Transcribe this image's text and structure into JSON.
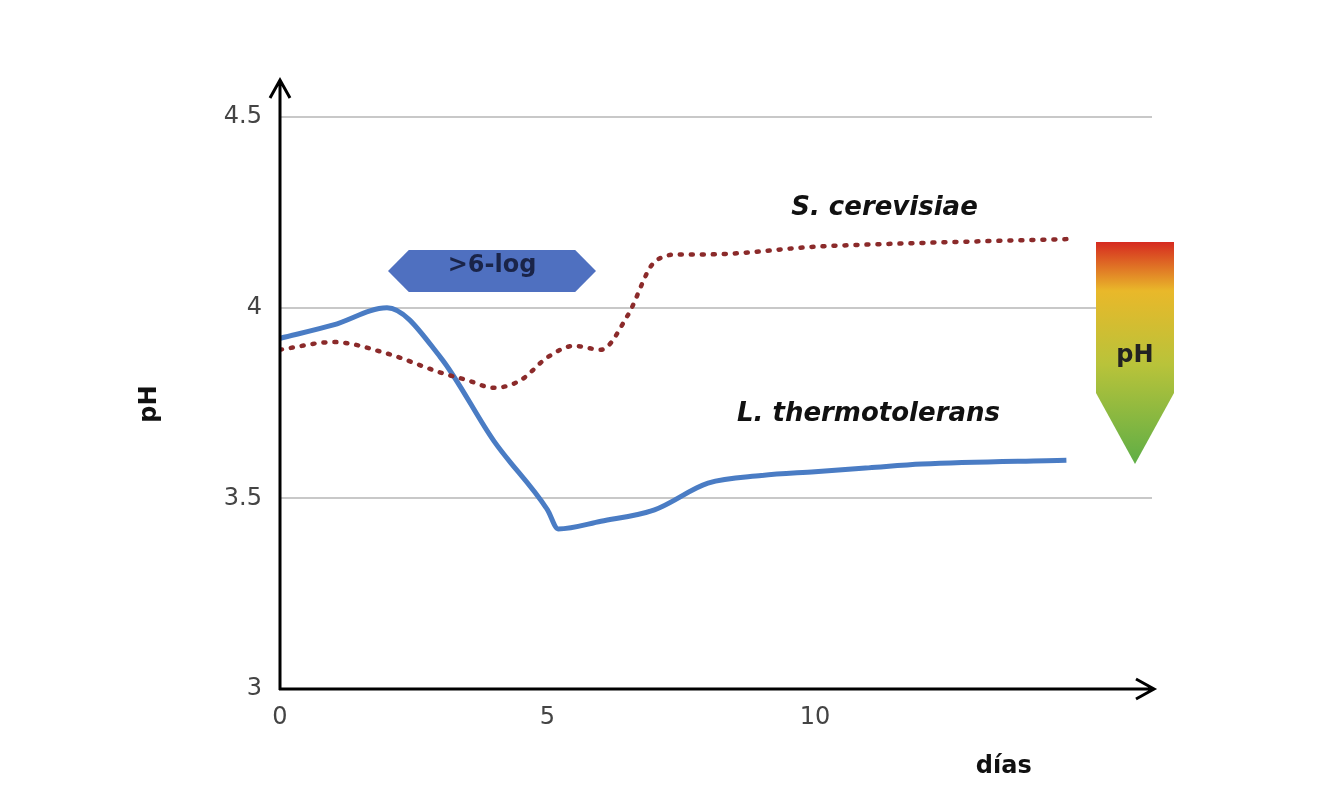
{
  "chart_data": {
    "type": "line",
    "xlabel": "días",
    "ylabel": "pH",
    "xlim": [
      0,
      16.3
    ],
    "ylim": [
      3,
      4.6
    ],
    "xticks": [
      0,
      5,
      10
    ],
    "yticks": [
      3,
      3.5,
      4,
      4.5
    ],
    "grid": "y",
    "legend": false,
    "annotations": [
      ">6-log",
      "pH"
    ],
    "series": [
      {
        "name": "S. cerevisiae",
        "color": "#8b2a2a",
        "line_style": "dotted",
        "x": [
          0,
          1,
          2,
          3,
          3.5,
          4,
          4.5,
          5,
          5.5,
          6,
          6.5,
          7,
          7.5,
          8,
          10,
          12,
          14.7
        ],
        "values": [
          3.89,
          3.91,
          3.88,
          3.83,
          3.81,
          3.79,
          3.81,
          3.87,
          3.9,
          3.89,
          3.98,
          4.12,
          4.14,
          4.14,
          4.16,
          4.17,
          4.18
        ]
      },
      {
        "name": "L. thermotolerans",
        "color": "#4a7cc4",
        "line_style": "solid",
        "x": [
          0,
          1,
          2,
          3,
          4,
          5,
          5.2,
          6,
          7,
          8,
          9,
          10,
          11,
          12,
          14.7
        ],
        "values": [
          3.92,
          3.955,
          4.0,
          3.87,
          3.65,
          3.47,
          3.42,
          3.44,
          3.47,
          3.54,
          3.56,
          3.57,
          3.58,
          3.59,
          3.6
        ]
      }
    ]
  }
}
